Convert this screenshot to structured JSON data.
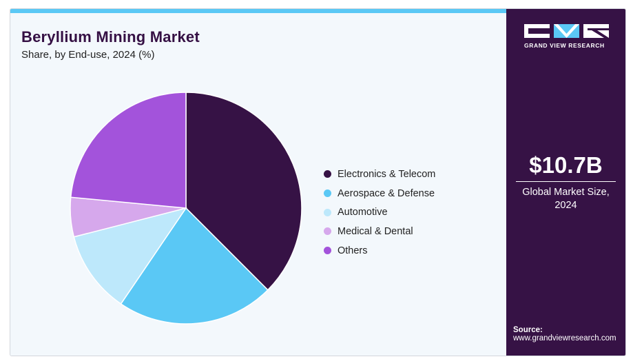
{
  "header": {
    "title": "Beryllium Mining Market",
    "subtitle": "Share, by End-use, 2024 (%)"
  },
  "chart_data": {
    "type": "pie",
    "start_angle_deg": 0,
    "direction": "clockwise",
    "slices": [
      {
        "name": "Electronics & Telecom",
        "value": 37.5,
        "color": "#361245"
      },
      {
        "name": "Aerospace & Defense",
        "value": 22.0,
        "color": "#5ac8f5"
      },
      {
        "name": "Automotive",
        "value": 11.5,
        "color": "#bde8fb"
      },
      {
        "name": "Medical & Dental",
        "value": 5.5,
        "color": "#d6a8ec"
      },
      {
        "name": "Others",
        "value": 23.5,
        "color": "#a353db"
      }
    ],
    "legend_position": "right"
  },
  "sidebar": {
    "logo_text": "GRAND VIEW RESEARCH",
    "stat_value": "$10.7B",
    "stat_label": "Global Market Size, 2024",
    "source_title": "Source:",
    "source_url": "www.grandviewresearch.com"
  },
  "colors": {
    "brand_dark": "#361245",
    "accent": "#5ac8f5",
    "panel_bg": "#f3f8fc"
  }
}
